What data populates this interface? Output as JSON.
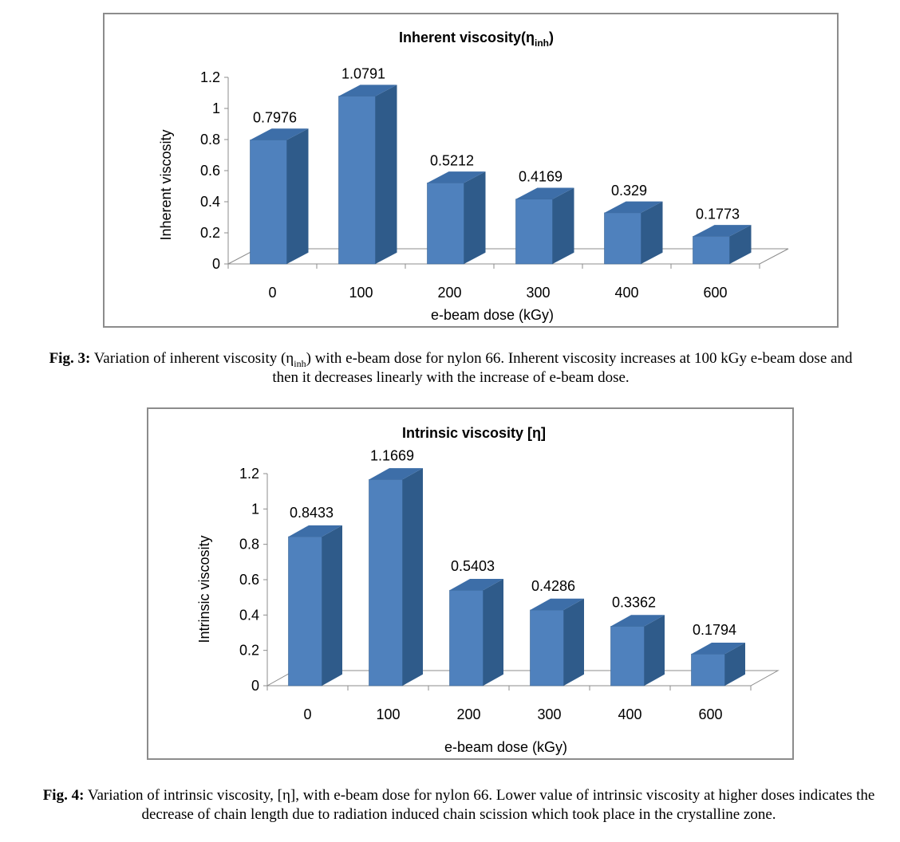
{
  "chart_data": [
    {
      "type": "bar",
      "title": "Inherent viscosity(η",
      "title_sub": "inh",
      "title_end": ")",
      "xlabel": "e-beam dose (kGy)",
      "ylabel": "Inherent viscosity",
      "categories": [
        "0",
        "100",
        "200",
        "300",
        "400",
        "600"
      ],
      "values": [
        0.7976,
        1.0791,
        0.5212,
        0.4169,
        0.329,
        0.1773
      ],
      "value_labels": [
        "0.7976",
        "1.0791",
        "0.5212",
        "0.4169",
        "0.329",
        "0.1773"
      ],
      "yticks": [
        "0",
        "0.2",
        "0.4",
        "0.6",
        "0.8",
        "1",
        "1.2"
      ],
      "ylim": [
        0,
        1.2
      ],
      "bar_color": "#4f81bd"
    },
    {
      "type": "bar",
      "title": "Intrinsic viscosity [η]",
      "title_sub": "",
      "title_end": "",
      "xlabel": "e-beam dose (kGy)",
      "ylabel": "Intrinsic viscosity",
      "categories": [
        "0",
        "100",
        "200",
        "300",
        "400",
        "600"
      ],
      "values": [
        0.8433,
        1.1669,
        0.5403,
        0.4286,
        0.3362,
        0.1794
      ],
      "value_labels": [
        "0.8433",
        "1.1669",
        "0.5403",
        "0.4286",
        "0.3362",
        "0.1794"
      ],
      "yticks": [
        "0",
        "0.2",
        "0.4",
        "0.6",
        "0.8",
        "1",
        "1.2"
      ],
      "ylim": [
        0,
        1.2
      ],
      "bar_color": "#4f81bd"
    }
  ],
  "captions": [
    {
      "label": "Fig. 3:",
      "text_a": " Variation of inherent viscosity (η",
      "sub": "inh",
      "text_b": ") with e-beam dose for nylon 66. Inherent viscosity increases at 100 kGy e-beam dose and then it decreases linearly with the increase of e-beam dose."
    },
    {
      "label": "Fig. 4:",
      "text_a": " Variation of intrinsic viscosity, [η], with e-beam dose for nylon 66. Lower value of intrinsic viscosity at higher doses indicates the decrease of chain length due to radiation induced chain scission which took place in the crystalline zone.",
      "sub": "",
      "text_b": ""
    }
  ]
}
